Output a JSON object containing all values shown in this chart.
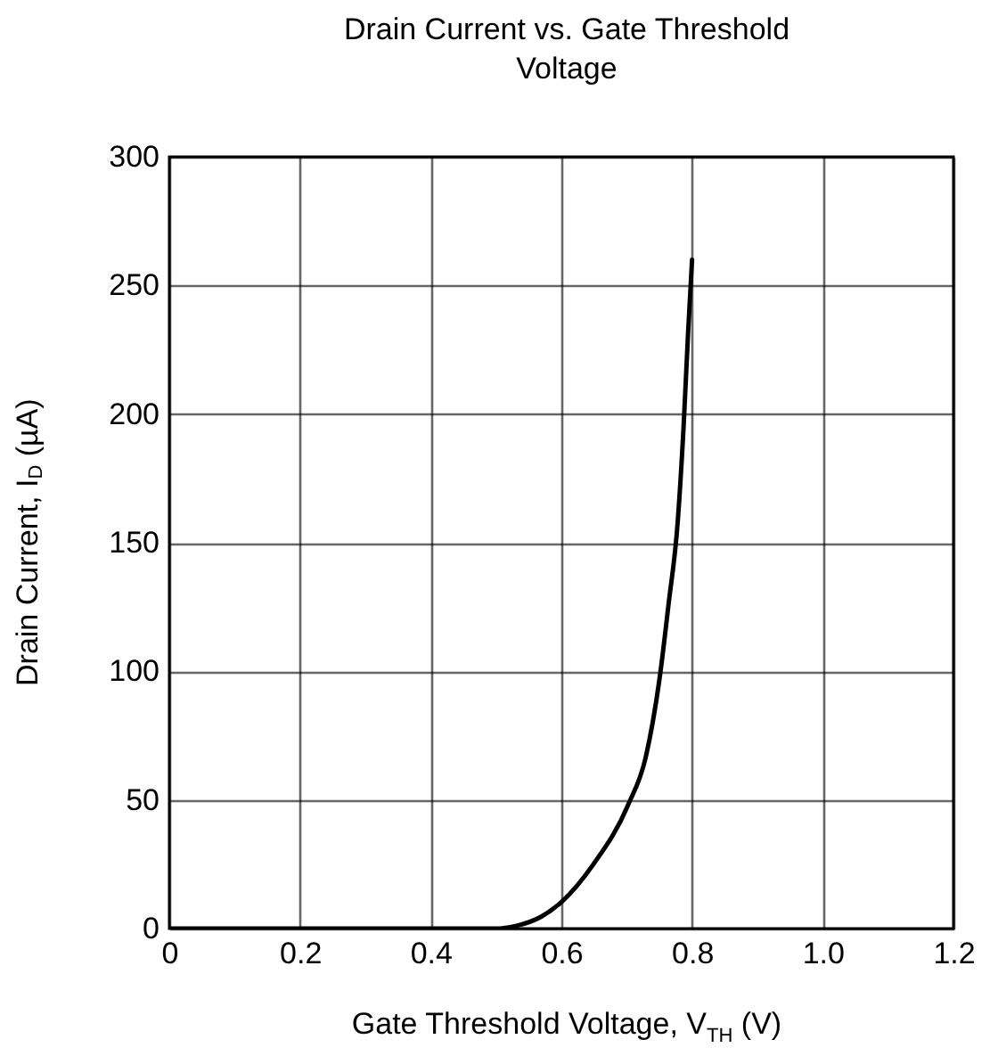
{
  "chart_data": {
    "type": "line",
    "title": "Drain Current vs. Gate Threshold Voltage",
    "xlabel": "Gate Threshold Voltage, V$_{TH}$ (V)",
    "ylabel": "Drain Current, I$_{D}$ (µA)",
    "series": [
      {
        "color": "#000000",
        "x": [
          0,
          0.3,
          0.5,
          0.53,
          0.569,
          0.6,
          0.649,
          0.702,
          0.729,
          0.751,
          0.764,
          0.778,
          0.787,
          0.794,
          0.8
        ],
        "values": [
          0,
          0,
          0,
          1,
          4.6,
          10.3,
          25,
          48,
          66.5,
          98.6,
          126,
          158,
          195,
          232,
          260
        ]
      }
    ],
    "xlim": [
      0,
      1.2
    ],
    "xticks": [
      {
        "value": 0,
        "label": "0"
      },
      {
        "value": 0.2,
        "label": "0.2"
      },
      {
        "value": 0.4,
        "label": "0.4"
      },
      {
        "value": 0.6,
        "label": "0.6"
      },
      {
        "value": 0.8,
        "label": "0.8"
      },
      {
        "value": 1,
        "label": "1.0"
      },
      {
        "value": 1.2,
        "label": "1.2"
      }
    ],
    "ylim": [
      0,
      300
    ],
    "yticks": [
      0,
      50,
      100,
      150,
      200,
      250,
      300
    ],
    "grid": true
  }
}
